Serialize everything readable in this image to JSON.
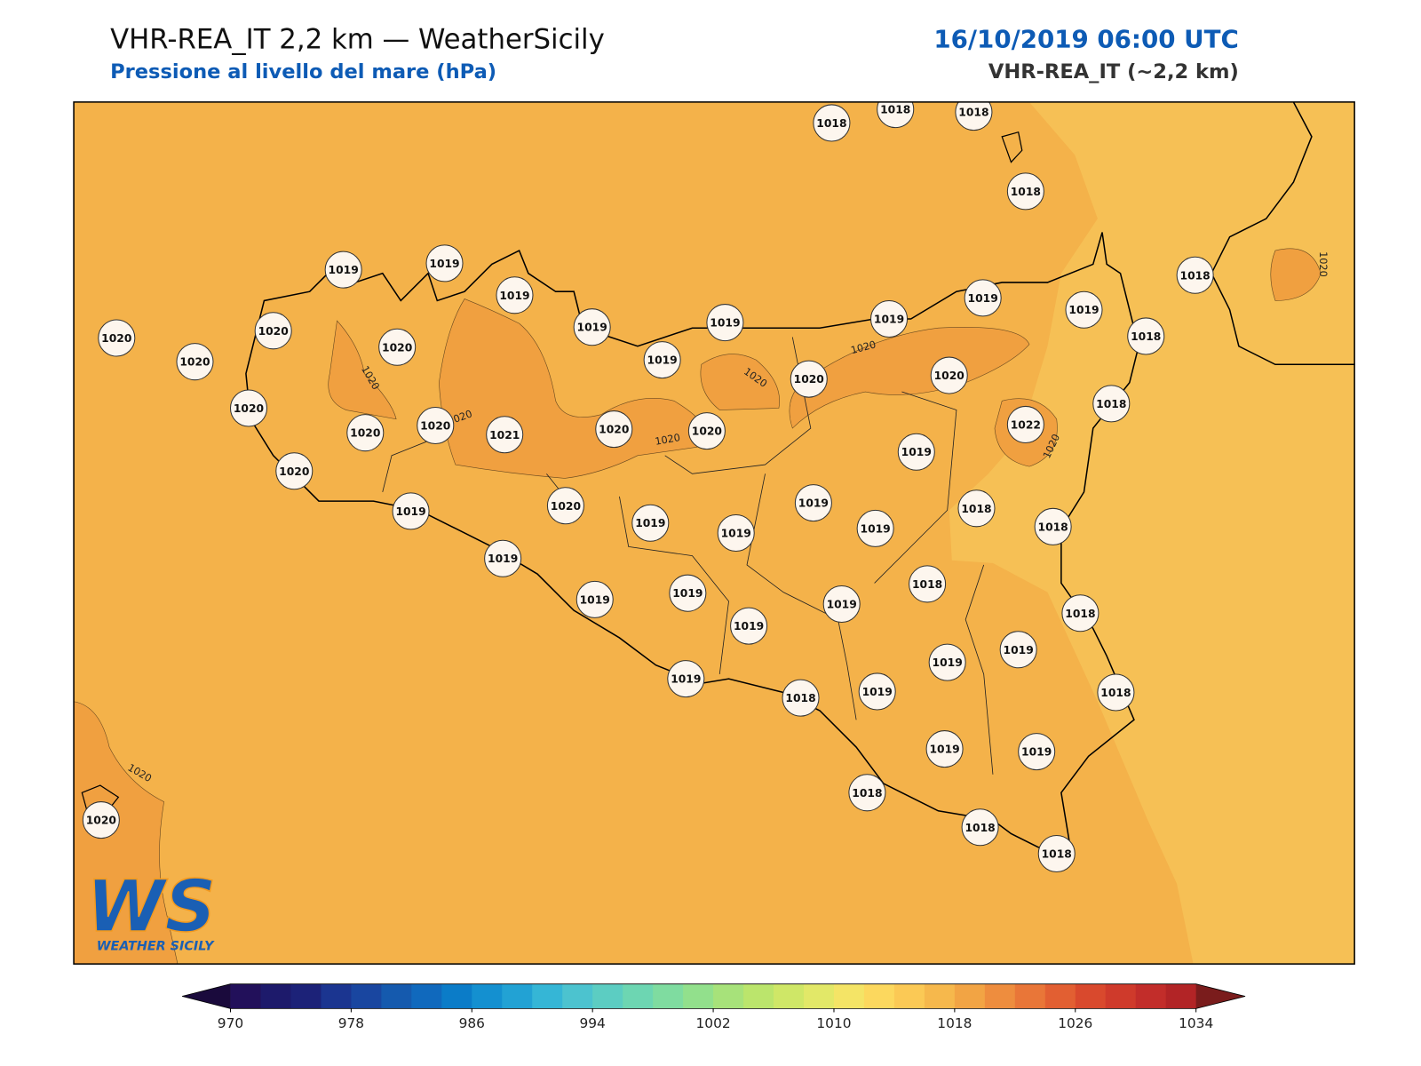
{
  "header": {
    "title": "VHR-REA_IT 2,2 km — WeatherSicily",
    "subtitle": "Pressione al livello del mare (hPa)",
    "datetime": "16/10/2019 06:00 UTC",
    "model": "VHR-REA_IT (~2,2 km)"
  },
  "stations": [
    1018,
    1018,
    1018,
    1018,
    1019,
    1019,
    1019,
    1019,
    1019,
    1019,
    1019,
    1019,
    1019,
    1018,
    1018,
    1020,
    1020,
    1020,
    1020,
    1020,
    1020,
    1020,
    1021,
    1020,
    1020,
    1020,
    1020,
    1022,
    1018,
    1019,
    1020,
    1019,
    1020,
    1019,
    1019,
    1019,
    1019,
    1018,
    1018,
    1019,
    1019,
    1019,
    1018,
    1019,
    1019,
    1018,
    1019,
    1019,
    1019,
    1018,
    1019,
    1018,
    1019,
    1019,
    1018,
    1018,
    1018,
    1020
  ],
  "contour_labels": [
    1020,
    1020,
    1020,
    1020,
    1020,
    1020,
    1020,
    1020
  ],
  "colorbar": {
    "lim": [
      970,
      1034
    ],
    "ticks": [
      970,
      978,
      986,
      994,
      1002,
      1010,
      1018,
      1026,
      1034
    ],
    "colors": [
      "#22105a",
      "#1d1a6b",
      "#1c2278",
      "#1b3590",
      "#1946a0",
      "#155aae",
      "#1069bd",
      "#0b7cc8",
      "#1490d0",
      "#22a2d4",
      "#35b6d6",
      "#4cc3cf",
      "#5ccdc2",
      "#6dd6b2",
      "#7fdca0",
      "#92e08c",
      "#a7e27a",
      "#bbe56c",
      "#cfe767",
      "#e2e868",
      "#f4e466",
      "#fcd85e",
      "#fbc955",
      "#f6b84c",
      "#f2a444",
      "#ee8d3e",
      "#e97638",
      "#e25f32",
      "#d9492d",
      "#cf3a2b",
      "#c22d2a",
      "#b22426"
    ],
    "under": "#1a0a3c",
    "over": "#7a1c1c"
  },
  "logo": {
    "mark": "WS",
    "text": "WEATHER SICILY"
  }
}
